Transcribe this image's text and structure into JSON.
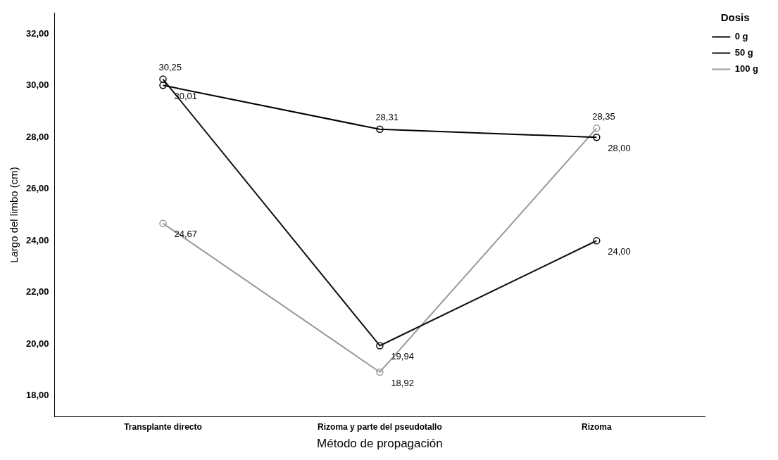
{
  "chart_data": {
    "type": "line",
    "xlabel": "Método de propagación",
    "ylabel": "Largo del limbo (cm)",
    "legend_title": "Dosis",
    "categories": [
      "Transplante directo",
      "Rizoma y parte del pseudotallo",
      "Rizoma"
    ],
    "series": [
      {
        "name": "0 g",
        "color": "#000000",
        "values": [
          30.01,
          28.31,
          28.0
        ],
        "value_labels": [
          "30,01",
          "28,31",
          "28,00"
        ]
      },
      {
        "name": "50 g",
        "color": "#111111",
        "values": [
          30.25,
          19.94,
          24.0
        ],
        "value_labels": [
          "30,25",
          "19,94",
          "24,00"
        ]
      },
      {
        "name": "100 g",
        "color": "#9a9a9a",
        "values": [
          24.67,
          18.92,
          28.35
        ],
        "value_labels": [
          "24,67",
          "18,92",
          "28,35"
        ]
      }
    ],
    "ylim": [
      17.2,
      32.8
    ],
    "yticks": [
      {
        "value": 18,
        "label": "18,00"
      },
      {
        "value": 20,
        "label": "20,00"
      },
      {
        "value": 22,
        "label": "22,00"
      },
      {
        "value": 24,
        "label": "24,00"
      },
      {
        "value": 26,
        "label": "26,00"
      },
      {
        "value": 28,
        "label": "28,00"
      },
      {
        "value": 30,
        "label": "30,00"
      },
      {
        "value": 32,
        "label": "32,00"
      }
    ],
    "marker": "circle",
    "line_style": "solid",
    "grid": false,
    "legend": "top right"
  }
}
